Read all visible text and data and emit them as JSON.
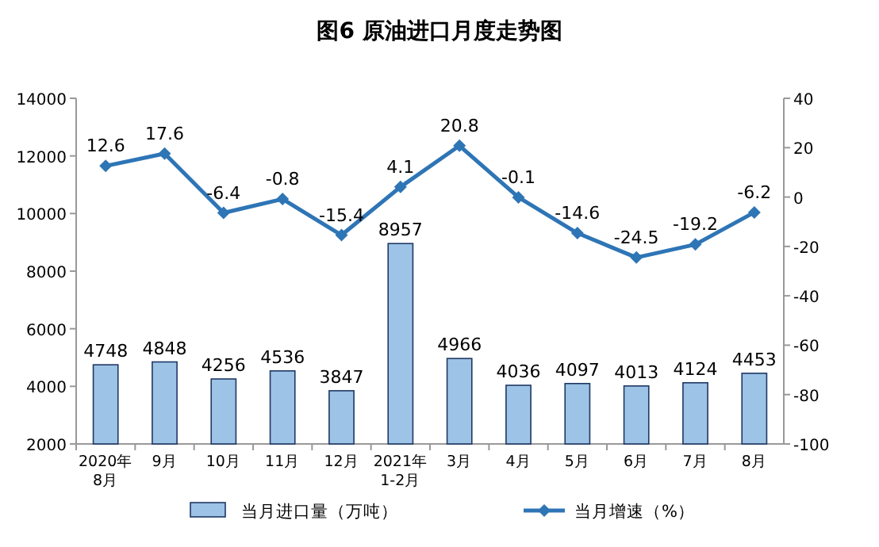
{
  "chart_data": {
    "type": "bar",
    "title": "图6  原油进口月度走势图",
    "categories": [
      "2020年\n8月",
      "9月",
      "10月",
      "11月",
      "12月",
      "2021年\n1-2月",
      "3月",
      "4月",
      "5月",
      "6月",
      "7月",
      "8月"
    ],
    "series": [
      {
        "name": "当月进口量（万吨）",
        "color": "#9dc3e6",
        "values": [
          4748,
          4848,
          4256,
          4536,
          3847,
          8957,
          4966,
          4036,
          4097,
          4013,
          4124,
          4453
        ]
      },
      {
        "name": "当月增速（%）",
        "type": "line",
        "axis": "y2",
        "color": "#2e75b6",
        "marker": "diamond",
        "values": [
          12.6,
          17.6,
          -6.4,
          -0.8,
          -15.4,
          4.1,
          20.8,
          -0.1,
          -14.6,
          -24.5,
          -19.2,
          -6.2
        ]
      }
    ],
    "ylim": [
      2000,
      14000
    ],
    "yticks": [
      2000,
      4000,
      6000,
      8000,
      10000,
      12000,
      14000
    ],
    "y2lim": [
      -100,
      40
    ],
    "y2ticks": [
      -100,
      -80,
      -60,
      -40,
      -20,
      0,
      20,
      40
    ],
    "data_labels": true,
    "legend": "bottom",
    "grid": false
  }
}
